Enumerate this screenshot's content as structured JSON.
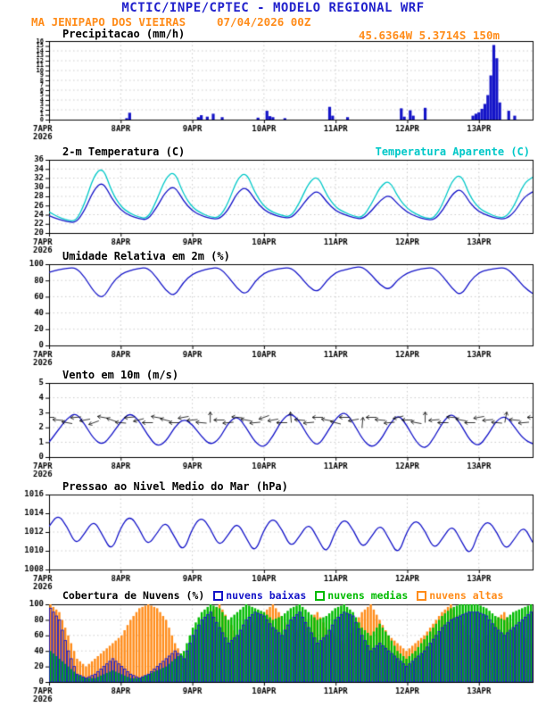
{
  "header": {
    "title": "MCTIC/INPE/CPTEC - MODELO REGIONAL WRF",
    "station": "MA JENIPAPO DOS VIEIRAS",
    "run": "07/04/2026 00Z",
    "coords": "45.6364W 5.3714S 150m"
  },
  "colors": {
    "title_blue": "#2222cc",
    "orange": "#ff8c1a",
    "series_blue": "#1414c8",
    "cyan": "#00c8c8",
    "green": "#00bb00",
    "grid": "#b4b4b4",
    "frame": "#000000"
  },
  "x_axis": {
    "days": [
      "7APR",
      "8APR",
      "9APR",
      "10APR",
      "11APR",
      "12APR",
      "13APR"
    ],
    "year": "2026",
    "hours_total": 162,
    "hours_per_day": 24,
    "step_hours": 3
  },
  "chart_data": [
    {
      "type": "bar",
      "title": "Precipitacao (mm/h)",
      "ylabel": "mm/h",
      "ylim": [
        0,
        16
      ],
      "ytick_step": 1,
      "grid_step": 2,
      "color": "#1414c8",
      "bars": {
        "t": [
          26,
          27,
          50,
          51,
          53,
          55,
          58,
          70,
          73,
          74,
          75,
          79,
          94,
          95,
          100,
          118,
          119,
          121,
          122,
          126,
          142,
          143,
          144,
          145,
          146,
          147,
          148,
          149,
          150,
          151,
          154,
          156
        ],
        "v": [
          0.3,
          1.4,
          0.5,
          0.9,
          0.6,
          1.2,
          0.5,
          0.4,
          1.8,
          0.7,
          0.5,
          0.3,
          2.6,
          0.8,
          0.5,
          2.3,
          0.6,
          1.9,
          0.8,
          2.4,
          0.8,
          1.2,
          1.5,
          2.2,
          3.2,
          5.0,
          9.0,
          15.2,
          12.5,
          3.5,
          1.8,
          0.8
        ]
      }
    },
    {
      "type": "line",
      "title": "2-m Temperatura (C)",
      "ylim": [
        20,
        36
      ],
      "ytick_step": 2,
      "series": [
        {
          "name": "2-m Temperatura (C)",
          "color": "#1414c8",
          "values": [
            23.8,
            23.0,
            22.5,
            22.2,
            25.0,
            29.5,
            31.3,
            27.5,
            25.0,
            23.8,
            23.2,
            22.8,
            25.5,
            29.0,
            30.4,
            27.0,
            24.8,
            23.8,
            23.2,
            23.0,
            25.0,
            28.8,
            30.2,
            27.2,
            25.0,
            24.0,
            23.5,
            23.2,
            25.2,
            28.0,
            29.4,
            26.8,
            24.8,
            24.0,
            23.4,
            23.0,
            24.8,
            27.2,
            28.4,
            26.2,
            24.5,
            23.6,
            23.0,
            22.8,
            25.0,
            28.5,
            29.8,
            26.5,
            24.6,
            23.8,
            23.2,
            23.0,
            24.6,
            27.8,
            29.0
          ]
        },
        {
          "name": "Temperatura Aparente (C)",
          "color": "#00c8c8",
          "values": [
            24.6,
            23.5,
            22.8,
            22.5,
            26.5,
            32.5,
            34.5,
            29.0,
            25.8,
            24.3,
            23.5,
            23.1,
            27.0,
            32.0,
            33.6,
            28.5,
            25.6,
            24.3,
            23.5,
            23.3,
            26.5,
            31.8,
            33.4,
            28.7,
            25.8,
            24.5,
            23.8,
            23.5,
            26.7,
            31.0,
            32.6,
            28.3,
            25.6,
            24.5,
            23.7,
            23.3,
            26.3,
            30.2,
            31.6,
            27.7,
            25.3,
            24.1,
            23.3,
            23.1,
            26.5,
            31.5,
            33.0,
            28.0,
            25.4,
            24.3,
            23.5,
            23.3,
            26.1,
            30.8,
            32.2
          ]
        }
      ]
    },
    {
      "type": "line",
      "title": "Umidade Relativa em 2m (%)",
      "ylim": [
        0,
        100
      ],
      "ytick_step": 20,
      "series": [
        {
          "name": "Umidade Relativa em 2m (%)",
          "color": "#1414c8",
          "values": [
            90,
            93,
            95,
            96,
            84,
            66,
            57,
            76,
            88,
            92,
            95,
            96,
            84,
            68,
            60,
            78,
            88,
            92,
            95,
            96,
            85,
            70,
            62,
            79,
            89,
            93,
            95,
            96,
            86,
            72,
            65,
            80,
            90,
            93,
            96,
            97,
            87,
            74,
            68,
            82,
            89,
            93,
            95,
            96,
            85,
            70,
            61,
            79,
            90,
            93,
            95,
            96,
            86,
            72,
            64
          ]
        }
      ]
    },
    {
      "type": "line",
      "title": "Vento em 10m (m/s)",
      "ylim": [
        0,
        5
      ],
      "ytick_step": 1,
      "series": [
        {
          "name": "Vento em 10m (m/s)",
          "color": "#1414c8",
          "values": [
            1.0,
            1.8,
            2.6,
            3.0,
            2.2,
            1.2,
            0.8,
            1.5,
            2.4,
            3.0,
            2.5,
            1.5,
            0.7,
            1.0,
            2.0,
            2.6,
            2.2,
            1.4,
            0.8,
            1.2,
            2.3,
            2.8,
            2.0,
            1.0,
            0.6,
            1.4,
            2.5,
            3.0,
            2.4,
            1.3,
            0.7,
            1.6,
            2.6,
            3.1,
            2.3,
            1.2,
            0.6,
            1.1,
            2.2,
            2.9,
            2.1,
            1.0,
            0.5,
            1.3,
            2.4,
            3.0,
            2.2,
            1.1,
            0.7,
            1.5,
            2.5,
            2.8,
            2.0,
            1.2,
            0.9
          ]
        }
      ],
      "barbs": {
        "y": 2.5,
        "angles": [
          180,
          175,
          170,
          185,
          190,
          200,
          170,
          160,
          175,
          185,
          195,
          180,
          170,
          165,
          180,
          190,
          185,
          175,
          90,
          180,
          185,
          175,
          170,
          185,
          200,
          190,
          180,
          95,
          175,
          185,
          180,
          170,
          165,
          180,
          190,
          85,
          180,
          175,
          185,
          195,
          180,
          170,
          90,
          185,
          180,
          175,
          170,
          180,
          190,
          185,
          175,
          80,
          175,
          185,
          180
        ]
      }
    },
    {
      "type": "line",
      "title": "Pressao ao Nivel Medio do Mar (hPa)",
      "ylim": [
        1008,
        1016
      ],
      "ytick_step": 2,
      "series": [
        {
          "name": "Pressao ao Nivel Medio do Mar (hPa)",
          "color": "#1414c8",
          "values": [
            1012.6,
            1013.9,
            1012.6,
            1010.6,
            1011.9,
            1013.3,
            1011.6,
            1009.9,
            1012.5,
            1013.8,
            1012.5,
            1010.5,
            1011.8,
            1013.2,
            1011.5,
            1009.8,
            1012.4,
            1013.7,
            1012.4,
            1010.4,
            1011.7,
            1013.1,
            1011.4,
            1009.7,
            1012.3,
            1013.6,
            1012.3,
            1010.3,
            1011.6,
            1013.0,
            1011.3,
            1009.6,
            1012.2,
            1013.5,
            1012.2,
            1010.2,
            1011.5,
            1012.9,
            1011.2,
            1009.5,
            1012.2,
            1013.4,
            1012.1,
            1010.1,
            1011.4,
            1012.8,
            1011.1,
            1009.4,
            1012.1,
            1013.3,
            1012.0,
            1010.0,
            1011.3,
            1012.7,
            1010.9
          ]
        }
      ]
    },
    {
      "type": "cloud",
      "title": "Cobertura de Nuvens (%)",
      "ylim": [
        0,
        100
      ],
      "ytick_step": 20,
      "series": [
        {
          "name": "nuvens baixas",
          "color": "#1414c8",
          "style": "outline",
          "values": [
            95,
            80,
            40,
            10,
            5,
            10,
            20,
            30,
            20,
            10,
            5,
            10,
            20,
            30,
            40,
            30,
            60,
            80,
            90,
            70,
            50,
            60,
            80,
            90,
            85,
            70,
            60,
            80,
            90,
            70,
            50,
            60,
            80,
            90,
            85,
            60,
            40,
            50,
            40,
            30,
            20,
            30,
            40,
            55,
            70,
            80,
            85,
            90,
            90,
            85,
            70,
            60,
            70,
            80,
            90
          ]
        },
        {
          "name": "nuvens medias",
          "color": "#00bb00",
          "style": "fill",
          "values": [
            40,
            30,
            20,
            10,
            5,
            5,
            10,
            15,
            10,
            5,
            5,
            10,
            15,
            20,
            30,
            40,
            70,
            90,
            100,
            95,
            80,
            90,
            100,
            95,
            90,
            80,
            85,
            95,
            100,
            90,
            80,
            85,
            95,
            100,
            90,
            70,
            60,
            75,
            60,
            40,
            30,
            40,
            55,
            70,
            85,
            95,
            100,
            100,
            100,
            95,
            85,
            80,
            90,
            95,
            100
          ]
        },
        {
          "name": "nuvens altas",
          "color": "#ff8c1a",
          "style": "fill",
          "values": [
            100,
            90,
            60,
            30,
            20,
            30,
            40,
            50,
            60,
            80,
            95,
            100,
            95,
            80,
            50,
            30,
            50,
            70,
            90,
            100,
            80,
            60,
            70,
            80,
            90,
            100,
            85,
            60,
            70,
            80,
            90,
            70,
            60,
            50,
            70,
            90,
            100,
            80,
            60,
            50,
            40,
            50,
            60,
            75,
            90,
            100,
            80,
            60,
            50,
            60,
            80,
            90,
            70,
            60,
            50
          ]
        }
      ]
    }
  ]
}
